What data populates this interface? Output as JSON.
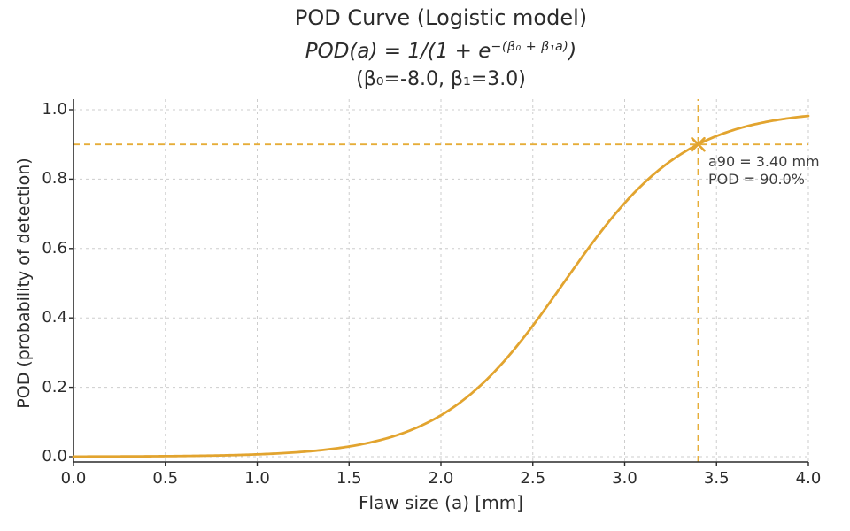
{
  "figure": {
    "title_line1": "POD Curve (Logistic model)",
    "formula_prefix": "POD(a) = 1/(1 + e",
    "formula_exponent": "−(β₀ + β₁a)",
    "formula_suffix": ")",
    "params_line": "(β₀=-8.0, β₁=3.0)"
  },
  "chart_data": {
    "type": "line",
    "title": "POD Curve (Logistic model)",
    "subtitle_formula": "POD(a) = 1/(1 + e^-(β0 + β1·a))",
    "model": "logistic",
    "parameters": {
      "beta0": -8.0,
      "beta1": 3.0
    },
    "xlabel": "Flaw size (a) [mm]",
    "ylabel": "POD (probability of detection)",
    "xlim": [
      0.0,
      4.0
    ],
    "ylim": [
      0.0,
      1.0
    ],
    "x_ticks": [
      0.0,
      0.5,
      1.0,
      1.5,
      2.0,
      2.5,
      3.0,
      3.5,
      4.0
    ],
    "y_ticks": [
      0.0,
      0.2,
      0.4,
      0.6,
      0.8,
      1.0
    ],
    "grid": true,
    "legend": null,
    "series": [
      {
        "name": "POD logistic curve",
        "sample_points": [
          [
            0.0,
            0.0003
          ],
          [
            0.5,
            0.0015
          ],
          [
            1.0,
            0.0067
          ],
          [
            1.5,
            0.0293
          ],
          [
            2.0,
            0.1192
          ],
          [
            2.5,
            0.3775
          ],
          [
            2.67,
            0.5
          ],
          [
            3.0,
            0.7311
          ],
          [
            3.4,
            0.9002
          ],
          [
            3.5,
            0.9241
          ],
          [
            4.0,
            0.982
          ]
        ]
      }
    ],
    "highlight": {
      "a90_mm": 3.4,
      "pod": 0.9
    },
    "annotation_lines": [
      "a90 = 3.40 mm",
      "POD = 90.0%"
    ],
    "colors": {
      "curve": "#E2A42F",
      "crosshair": "#E6AD38",
      "grid": "#cdcdcd",
      "spine": "#2a2a2a",
      "text": "#2b2b2b",
      "annotation_text": "#3d3d3d"
    }
  }
}
